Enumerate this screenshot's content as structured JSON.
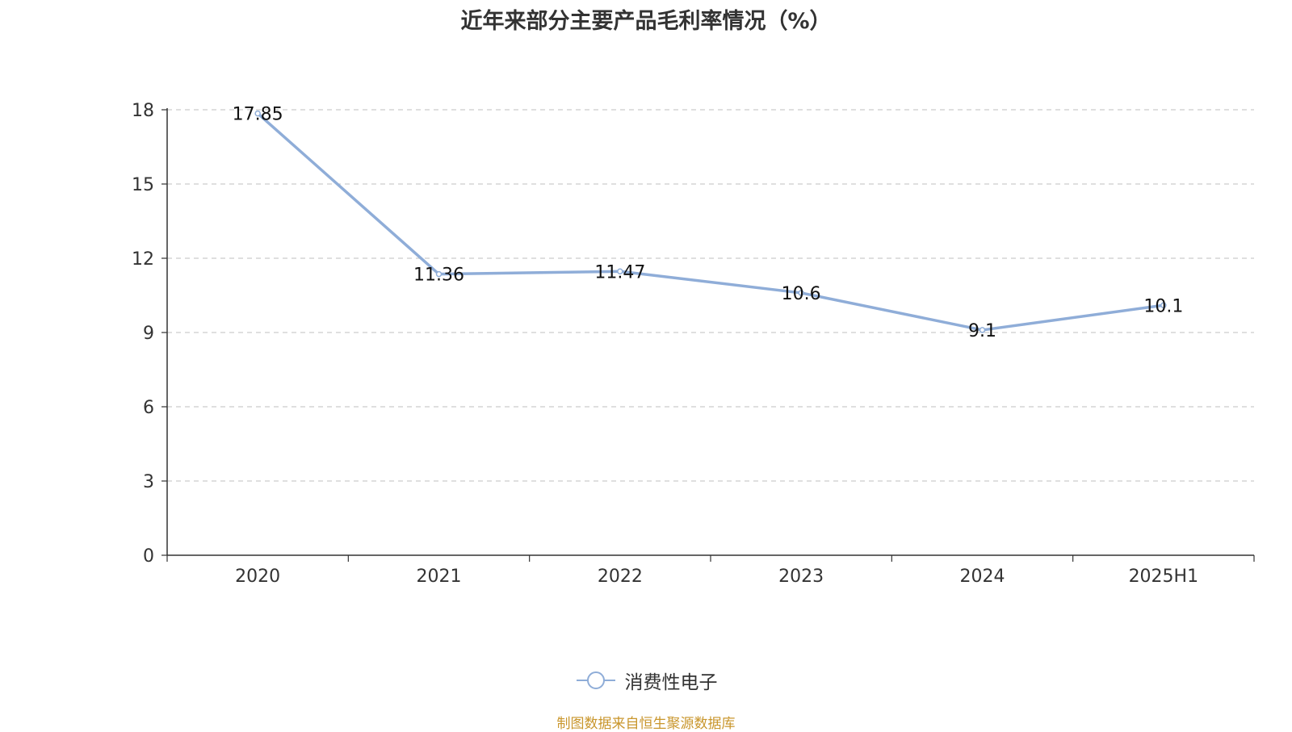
{
  "header": {
    "title": "近年来部分主要产品毛利率情况（%）"
  },
  "footer": {
    "source": "制图数据来自恒生聚源数据库"
  },
  "colors": {
    "line": "#8fadd8",
    "grid": "#cccccc",
    "axis": "#333333",
    "source": "#c9962c"
  },
  "chart_data": {
    "type": "line",
    "title": "近年来部分主要产品毛利率情况（%）",
    "xlabel": "",
    "ylabel": "",
    "categories": [
      "2020",
      "2021",
      "2022",
      "2023",
      "2024",
      "2025H1"
    ],
    "series": [
      {
        "name": "消费性电子",
        "values": [
          17.85,
          11.36,
          11.47,
          10.6,
          9.1,
          10.1
        ],
        "labels": [
          "17.85",
          "11.36",
          "11.47",
          "10.6",
          "9.1",
          "10.1"
        ]
      }
    ],
    "ylim": [
      0,
      18
    ],
    "yticks": [
      "0",
      "3",
      "6",
      "9",
      "12",
      "15",
      "18"
    ],
    "grid": "horizontal-dashed",
    "legend_position": "bottom-center"
  }
}
